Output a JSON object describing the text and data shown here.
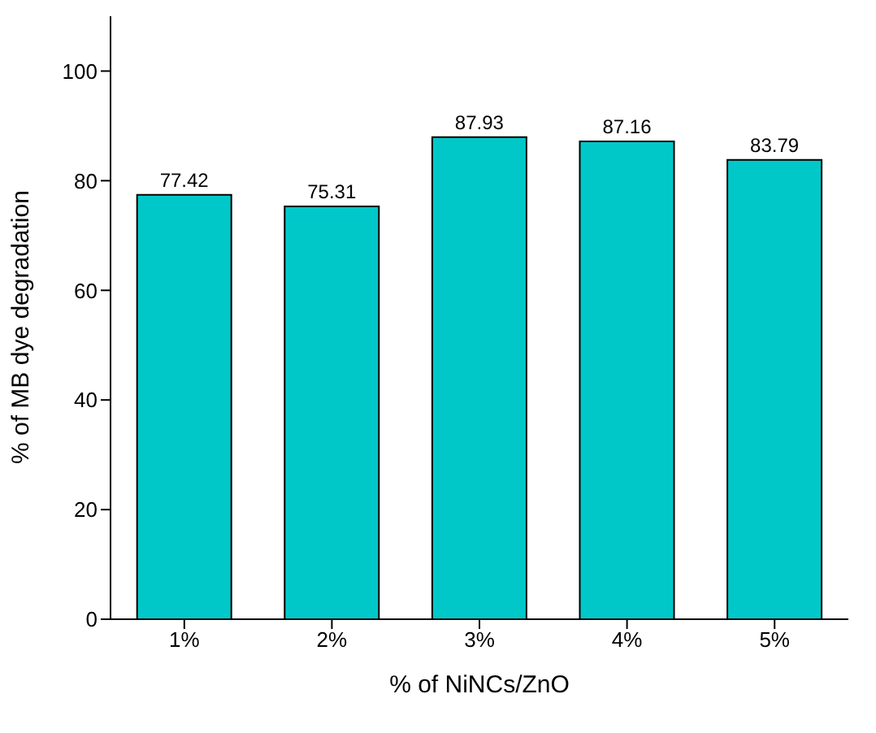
{
  "chart_data": {
    "type": "bar",
    "xlabel": "% of NiNCs/ZnO",
    "ylabel": "% of MB dye degradation",
    "categories": [
      "1%",
      "2%",
      "3%",
      "4%",
      "5%"
    ],
    "values": [
      77.42,
      75.31,
      87.93,
      87.16,
      83.79
    ],
    "color": "#00c8c8",
    "ylim": [
      0,
      110
    ],
    "yticks": [
      0,
      20,
      40,
      60,
      80,
      100
    ],
    "grid": false,
    "data_labels": true
  }
}
